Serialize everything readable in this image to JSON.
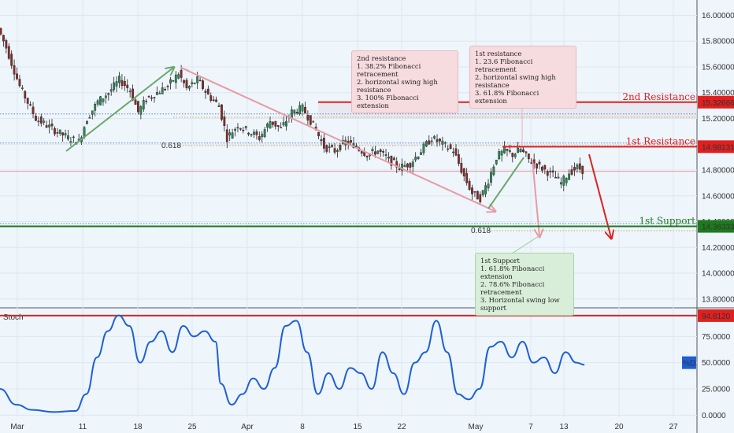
{
  "chart_data": [
    {
      "type": "candlestick",
      "x_ticks": [
        "Mar",
        "11",
        "18",
        "25",
        "Apr",
        "8",
        "15",
        "22",
        "May",
        "7",
        "13",
        "20",
        "27"
      ],
      "y_ticks": [
        "16.00000",
        "15.80000",
        "15.60000",
        "15.40000",
        "15.20000",
        "15.00000",
        "14.80000",
        "14.60000",
        "14.40000",
        "14.20000",
        "14.00000",
        "13.80000"
      ],
      "ylim": [
        13.75,
        16.07
      ],
      "price_path": [
        [
          0,
          15.9
        ],
        [
          3,
          15.75
        ],
        [
          8,
          15.45
        ],
        [
          14,
          15.2
        ],
        [
          20,
          15.12
        ],
        [
          26,
          15.05
        ],
        [
          30,
          15.02
        ],
        [
          33,
          15.2
        ],
        [
          37,
          15.33
        ],
        [
          41,
          15.4
        ],
        [
          45,
          15.5
        ],
        [
          49,
          15.42
        ],
        [
          52,
          15.25
        ],
        [
          55,
          15.35
        ],
        [
          59,
          15.4
        ],
        [
          63,
          15.45
        ],
        [
          67,
          15.55
        ],
        [
          70,
          15.43
        ],
        [
          74,
          15.5
        ],
        [
          78,
          15.38
        ],
        [
          82,
          15.3
        ],
        [
          85,
          15.05
        ],
        [
          89,
          15.15
        ],
        [
          93,
          15.1
        ],
        [
          97,
          15.05
        ],
        [
          101,
          15.18
        ],
        [
          105,
          15.12
        ],
        [
          109,
          15.25
        ],
        [
          113,
          15.28
        ],
        [
          117,
          15.15
        ],
        [
          121,
          14.98
        ],
        [
          125,
          14.95
        ],
        [
          129,
          15.02
        ],
        [
          133,
          14.98
        ],
        [
          137,
          14.92
        ],
        [
          141,
          14.95
        ],
        [
          145,
          14.88
        ],
        [
          149,
          14.82
        ],
        [
          153,
          14.85
        ],
        [
          157,
          14.95
        ],
        [
          161,
          15.05
        ],
        [
          165,
          15.0
        ],
        [
          169,
          14.95
        ],
        [
          173,
          14.75
        ],
        [
          176,
          14.62
        ],
        [
          179,
          14.58
        ],
        [
          182,
          14.72
        ],
        [
          185,
          14.9
        ],
        [
          188,
          14.95
        ],
        [
          191,
          14.92
        ],
        [
          194,
          14.96
        ],
        [
          197,
          14.88
        ],
        [
          200,
          14.84
        ],
        [
          203,
          14.8
        ],
        [
          206,
          14.76
        ],
        [
          209,
          14.7
        ],
        [
          212,
          14.78
        ],
        [
          215,
          14.82
        ],
        [
          217,
          14.8
        ]
      ],
      "annotations": [
        {
          "text": "2nd resistance\n1. 38.2% Fibonacci retracement\n2. horizontal swing high resistance\n3. 100% Fibonacci extension",
          "tone": "red"
        },
        {
          "text": "1st resistance\n1. 23.6 Fibonacci retracement\n2. horizontal swing high resistance\n3. 61.8% Fibonacci extension",
          "tone": "red"
        },
        {
          "text": "1st Support\n1. 61.8% Fibonacci extension\n2. 78.6% Fibonacci retracement\n3. Horizontal swing low support",
          "tone": "green"
        }
      ],
      "levels": [
        {
          "name": "2nd Resistance",
          "value": 15.32666,
          "label": "15.32666",
          "color": "#e02020"
        },
        {
          "name": "1st Resistance",
          "value": 14.98131,
          "label": "14.98131",
          "color": "#e02020"
        },
        {
          "name": "1st Support",
          "value": 14.36333,
          "label": "14.36333",
          "color": "#1e7a1e"
        }
      ],
      "fib_labels": [
        "0.618",
        "0.618"
      ]
    },
    {
      "type": "line",
      "title": "Stoch",
      "y_ticks": [
        "94.8120",
        "75.0000",
        "50.0000",
        "25.0000",
        "0.0000"
      ],
      "ylim": [
        -2,
        100
      ],
      "indicator_label": "%D",
      "level": {
        "value": 94.812,
        "label": "94.8120",
        "color": "#e02020"
      },
      "values": [
        [
          0,
          25
        ],
        [
          6,
          10
        ],
        [
          12,
          5
        ],
        [
          20,
          3
        ],
        [
          28,
          4
        ],
        [
          32,
          20
        ],
        [
          36,
          55
        ],
        [
          40,
          80
        ],
        [
          44,
          95
        ],
        [
          48,
          85
        ],
        [
          52,
          50
        ],
        [
          56,
          70
        ],
        [
          60,
          80
        ],
        [
          64,
          60
        ],
        [
          68,
          85
        ],
        [
          72,
          75
        ],
        [
          76,
          80
        ],
        [
          80,
          70
        ],
        [
          82,
          30
        ],
        [
          86,
          10
        ],
        [
          90,
          20
        ],
        [
          94,
          35
        ],
        [
          98,
          25
        ],
        [
          102,
          45
        ],
        [
          106,
          85
        ],
        [
          110,
          90
        ],
        [
          114,
          60
        ],
        [
          118,
          20
        ],
        [
          122,
          40
        ],
        [
          126,
          25
        ],
        [
          130,
          45
        ],
        [
          134,
          40
        ],
        [
          138,
          25
        ],
        [
          142,
          60
        ],
        [
          146,
          40
        ],
        [
          150,
          20
        ],
        [
          154,
          50
        ],
        [
          158,
          60
        ],
        [
          162,
          90
        ],
        [
          166,
          60
        ],
        [
          170,
          20
        ],
        [
          174,
          15
        ],
        [
          178,
          25
        ],
        [
          182,
          65
        ],
        [
          186,
          70
        ],
        [
          190,
          55
        ],
        [
          194,
          70
        ],
        [
          198,
          50
        ],
        [
          202,
          55
        ],
        [
          206,
          40
        ],
        [
          210,
          60
        ],
        [
          214,
          50
        ],
        [
          217,
          48
        ]
      ]
    }
  ]
}
